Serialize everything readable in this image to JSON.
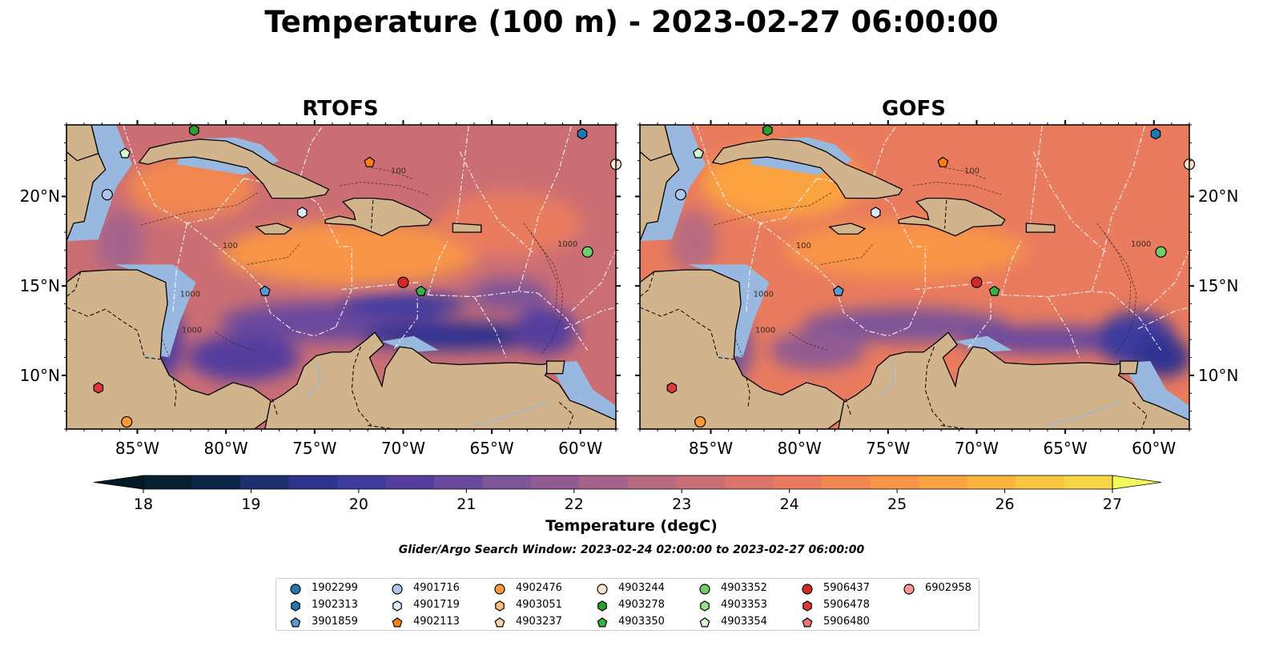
{
  "title": "Temperature (100 m) - 2023-02-27 06:00:00",
  "panels": [
    {
      "title": "RTOFS",
      "model": "rtofs"
    },
    {
      "title": "GOFS",
      "model": "gofs"
    }
  ],
  "map": {
    "lon_labels": [
      "85°W",
      "80°W",
      "75°W",
      "70°W",
      "65°W",
      "60°W"
    ],
    "lat_labels": [
      "20°N",
      "15°N",
      "10°N"
    ],
    "lon_range": [
      -89.0,
      -58.0
    ],
    "lat_range": [
      7.0,
      24.0
    ],
    "isobath_labels": [
      "1000",
      "100"
    ],
    "colors": {
      "land": "#d2b48c",
      "shelf": "#98b8e0",
      "deep_cold": "#06202e",
      "rivers": "#9fb6d0",
      "eez_lines": "#ffffff",
      "coastline": "#000000"
    }
  },
  "colorbar": {
    "label": "Temperature (degC)",
    "ticks": [
      "18",
      "19",
      "20",
      "21",
      "22",
      "23",
      "24",
      "25",
      "26",
      "27"
    ],
    "min": 18,
    "max": 27,
    "step": 0.5,
    "colors": [
      "#062132",
      "#0c2647",
      "#1d2f6e",
      "#2e3390",
      "#3e3a9e",
      "#543d9e",
      "#6a4a9e",
      "#7d5598",
      "#925b92",
      "#a6638a",
      "#b86a80",
      "#cb6e74",
      "#dc7469",
      "#e97b5e",
      "#f28850",
      "#f89546",
      "#fba340",
      "#fcb33e",
      "#fac640",
      "#f6d645"
    ],
    "extend_low": "#051a27",
    "extend_high": "#f2f75c"
  },
  "search_window": "Glider/Argo Search Window: 2023-02-24 02:00:00 to 2023-02-27 06:00:00",
  "legend": [
    {
      "id": "1902299",
      "marker": "circle",
      "color": "#1f77b4"
    },
    {
      "id": "1902313",
      "marker": "hexagon",
      "color": "#1f77b4"
    },
    {
      "id": "3901859",
      "marker": "pentagon",
      "color": "#5b9bd5"
    },
    {
      "id": "4901716",
      "marker": "circle",
      "color": "#aec7e8"
    },
    {
      "id": "4901719",
      "marker": "hexagon",
      "color": "#dbeaf7"
    },
    {
      "id": "4902113",
      "marker": "pentagon",
      "color": "#ff7f0e"
    },
    {
      "id": "4902476",
      "marker": "circle",
      "color": "#ff9933"
    },
    {
      "id": "4903051",
      "marker": "hexagon",
      "color": "#ffbb78"
    },
    {
      "id": "4903237",
      "marker": "pentagon",
      "color": "#ffd1a3"
    },
    {
      "id": "4903244",
      "marker": "circle",
      "color": "#fde3cc"
    },
    {
      "id": "4903278",
      "marker": "hexagon",
      "color": "#2ca02c"
    },
    {
      "id": "4903350",
      "marker": "pentagon",
      "color": "#3cb043"
    },
    {
      "id": "4903352",
      "marker": "circle",
      "color": "#6fcf6f"
    },
    {
      "id": "4903353",
      "marker": "hexagon",
      "color": "#98df8a"
    },
    {
      "id": "4903354",
      "marker": "pentagon",
      "color": "#d4f5cf"
    },
    {
      "id": "5906437",
      "marker": "circle",
      "color": "#d62728"
    },
    {
      "id": "5906478",
      "marker": "hexagon",
      "color": "#e0393b"
    },
    {
      "id": "5906480",
      "marker": "pentagon",
      "color": "#e8747c"
    },
    {
      "id": "6902958",
      "marker": "circle",
      "color": "#ff9896"
    }
  ],
  "observations": [
    {
      "id": "4903278",
      "lon": -81.8,
      "lat": 23.7
    },
    {
      "id": "1902313",
      "lon": -59.9,
      "lat": 23.5
    },
    {
      "id": "4903354",
      "lon": -85.7,
      "lat": 22.4
    },
    {
      "id": "4902113",
      "lon": -71.9,
      "lat": 21.9
    },
    {
      "id": "4903244",
      "lon": -58.0,
      "lat": 21.8
    },
    {
      "id": "4901716",
      "lon": -86.7,
      "lat": 20.1
    },
    {
      "id": "4901719",
      "lon": -75.7,
      "lat": 19.1
    },
    {
      "id": "4903352",
      "lon": -59.6,
      "lat": 16.9
    },
    {
      "id": "5906437",
      "lon": -70.0,
      "lat": 15.2
    },
    {
      "id": "3901859",
      "lon": -77.8,
      "lat": 14.7
    },
    {
      "id": "4903350",
      "lon": -69.0,
      "lat": 14.7
    },
    {
      "id": "5906478",
      "lon": -87.2,
      "lat": 9.3
    },
    {
      "id": "4902476",
      "lon": -85.6,
      "lat": 7.4
    }
  ]
}
